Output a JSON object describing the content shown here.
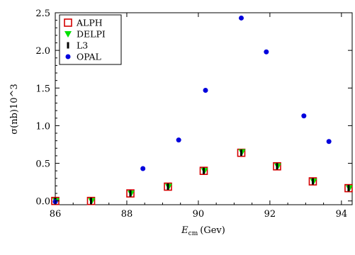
{
  "chart_data": {
    "type": "scatter",
    "xlabel_main": "E",
    "xlabel_sub": "cm",
    "xlabel_unit": "(Gev)",
    "ylabel": "σ(nb)10^3",
    "xlim": [
      86,
      94.3
    ],
    "ylim": [
      -0.05,
      2.5
    ],
    "xticks": [
      "86",
      "88",
      "90",
      "92",
      "94"
    ],
    "xtick_values": [
      86,
      88,
      90,
      92,
      94
    ],
    "yticks": [
      "0.0",
      "0.5",
      "1.0",
      "1.5",
      "2.0",
      "2.5"
    ],
    "ytick_values": [
      0.0,
      0.5,
      1.0,
      1.5,
      2.0,
      2.5
    ],
    "grid": false,
    "legend_position": "top-left",
    "series": [
      {
        "name": "ALPH",
        "marker": "open-square",
        "color": "#d40000",
        "points": [
          [
            86.0,
            0.0
          ],
          [
            87.0,
            0.0
          ],
          [
            88.1,
            0.1
          ],
          [
            89.15,
            0.19
          ],
          [
            90.15,
            0.4
          ],
          [
            91.2,
            0.64
          ],
          [
            92.2,
            0.46
          ],
          [
            93.2,
            0.26
          ],
          [
            94.2,
            0.17
          ]
        ]
      },
      {
        "name": "DELPI",
        "marker": "triangle-down",
        "color": "#00e000",
        "points": [
          [
            86.02,
            0.0
          ],
          [
            87.02,
            0.0
          ],
          [
            88.12,
            0.1
          ],
          [
            89.17,
            0.19
          ],
          [
            90.17,
            0.4
          ],
          [
            91.22,
            0.65
          ],
          [
            92.22,
            0.46
          ],
          [
            93.22,
            0.26
          ],
          [
            94.22,
            0.17
          ]
        ]
      },
      {
        "name": "L3",
        "marker": "bar",
        "color": "#000000",
        "points": [
          [
            86.0,
            0.0
          ],
          [
            87.0,
            0.0
          ],
          [
            88.1,
            0.1
          ],
          [
            89.15,
            0.19
          ],
          [
            90.15,
            0.4
          ],
          [
            91.2,
            0.64
          ],
          [
            92.2,
            0.46
          ],
          [
            93.2,
            0.26
          ],
          [
            94.2,
            0.17
          ]
        ]
      },
      {
        "name": "OPAL",
        "marker": "dot",
        "color": "#0000dd",
        "points": [
          [
            86.0,
            -0.01
          ],
          [
            88.45,
            0.43
          ],
          [
            89.45,
            0.81
          ],
          [
            90.2,
            1.47
          ],
          [
            91.2,
            2.43
          ],
          [
            91.9,
            1.98
          ],
          [
            92.95,
            1.13
          ],
          [
            93.65,
            0.79
          ]
        ]
      }
    ]
  }
}
